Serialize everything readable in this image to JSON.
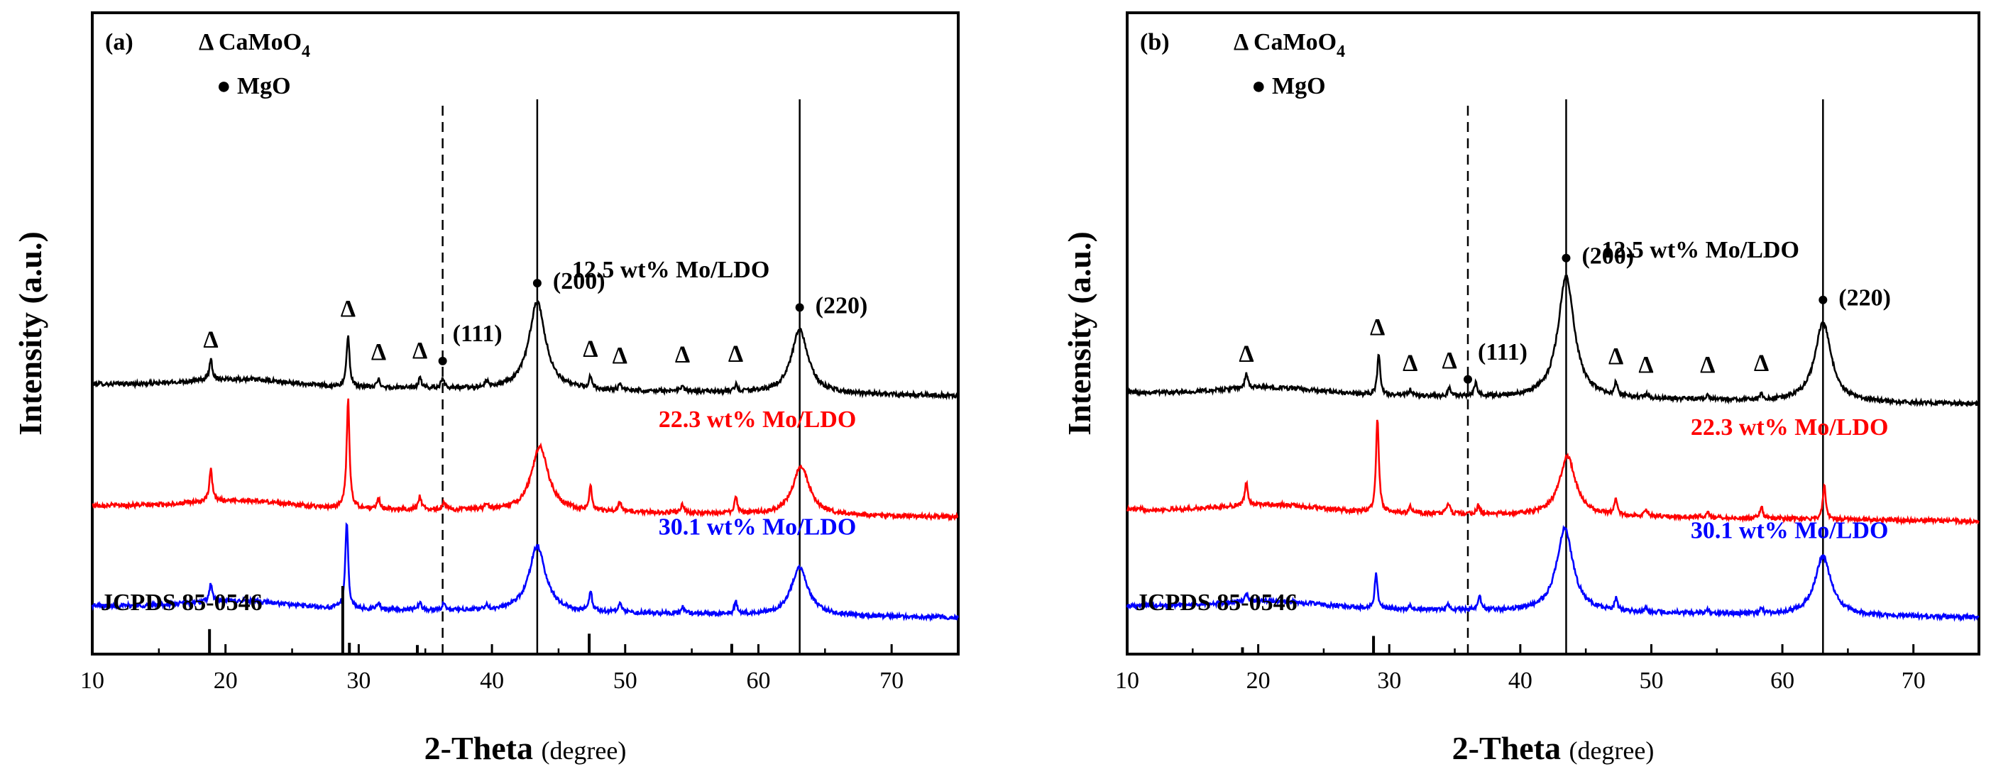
{
  "chart_data": [
    {
      "type": "line",
      "panel_label": "(a)",
      "title": "",
      "xlabel": "2-Theta",
      "xlabel_unit": "(degree)",
      "ylabel": "Intensity (a.u.)",
      "xlim": [
        10,
        75
      ],
      "xticks": [
        10,
        20,
        30,
        40,
        50,
        60,
        70
      ],
      "yticks_shown": false,
      "legend": {
        "entries": [
          {
            "marker": "Δ",
            "label": "CaMoO",
            "subscript": "4"
          },
          {
            "marker": "●",
            "label": "MgO",
            "subscript": ""
          }
        ],
        "placement": "top-left"
      },
      "series": [
        {
          "name": "12.5 wt% Mo/LDO",
          "label_text": "12.5 wt% Mo/LDO",
          "color": "#000000",
          "offset": 3.0,
          "peaks": [
            [
              18.9,
              0.25
            ],
            [
              29.2,
              0.62
            ],
            [
              31.5,
              0.1
            ],
            [
              34.6,
              0.12
            ],
            [
              36.3,
              0.12
            ],
            [
              39.6,
              0.07
            ],
            [
              43.4,
              1.05
            ],
            [
              47.4,
              0.14
            ],
            [
              49.6,
              0.06
            ],
            [
              54.3,
              0.07
            ],
            [
              58.3,
              0.08
            ],
            [
              63.1,
              0.76
            ]
          ]
        },
        {
          "name": "22.3 wt% Mo/LDO",
          "label_text": "22.3 wt% Mo/LDO",
          "color": "#ff0000",
          "offset": 1.55,
          "peaks": [
            [
              18.9,
              0.38
            ],
            [
              29.2,
              1.3
            ],
            [
              31.5,
              0.12
            ],
            [
              34.6,
              0.16
            ],
            [
              36.4,
              0.1
            ],
            [
              39.6,
              0.07
            ],
            [
              43.6,
              0.78
            ],
            [
              47.4,
              0.28
            ],
            [
              49.6,
              0.12
            ],
            [
              54.3,
              0.1
            ],
            [
              58.3,
              0.2
            ],
            [
              63.2,
              0.58
            ]
          ]
        },
        {
          "name": "30.1 wt% Mo/LDO",
          "label_text": "30.1 wt% Mo/LDO",
          "color": "#0000ff",
          "offset": 0.35,
          "peaks": [
            [
              18.9,
              0.22
            ],
            [
              29.1,
              1.04
            ],
            [
              31.5,
              0.08
            ],
            [
              34.6,
              0.1
            ],
            [
              36.4,
              0.08
            ],
            [
              39.6,
              0.06
            ],
            [
              43.4,
              0.78
            ],
            [
              47.4,
              0.24
            ],
            [
              49.6,
              0.1
            ],
            [
              54.3,
              0.08
            ],
            [
              58.3,
              0.14
            ],
            [
              63.1,
              0.57
            ]
          ]
        }
      ],
      "reference": {
        "label": "JCPDS 85-0546",
        "lines": [
          [
            18.8,
            0.22
          ],
          [
            28.8,
            0.6
          ],
          [
            29.3,
            0.1
          ],
          [
            34.4,
            0.08
          ],
          [
            47.3,
            0.18
          ],
          [
            58.0,
            0.09
          ]
        ]
      },
      "reflection_labels": [
        {
          "x": 36.3,
          "hkl": "(111)",
          "line": "dashed"
        },
        {
          "x": 43.4,
          "hkl": "(200)",
          "line": "solid"
        },
        {
          "x": 63.1,
          "hkl": "(220)",
          "line": "solid"
        }
      ],
      "triangle_markers": [
        18.9,
        29.2,
        31.5,
        34.6,
        47.4,
        49.6,
        54.3,
        58.3
      ]
    },
    {
      "type": "line",
      "panel_label": "(b)",
      "title": "",
      "xlabel": "2-Theta",
      "xlabel_unit": "(degree)",
      "ylabel": "Intensity (a.u.)",
      "xlim": [
        10,
        75
      ],
      "xticks": [
        10,
        20,
        30,
        40,
        50,
        60,
        70
      ],
      "yticks_shown": false,
      "legend": {
        "entries": [
          {
            "marker": "Δ",
            "label": "CaMoO",
            "subscript": "4"
          },
          {
            "marker": "●",
            "label": "MgO",
            "subscript": ""
          }
        ],
        "placement": "top-left"
      },
      "series": [
        {
          "name": "12.5 wt% Mo/LDO",
          "label_text": "12.5 wt% Mo/LDO",
          "color": "#000000",
          "offset": 2.9,
          "peaks": [
            [
              19.1,
              0.18
            ],
            [
              29.2,
              0.5
            ],
            [
              31.6,
              0.07
            ],
            [
              34.6,
              0.1
            ],
            [
              36.6,
              0.16
            ],
            [
              43.5,
              1.45
            ],
            [
              47.3,
              0.15
            ],
            [
              49.6,
              0.05
            ],
            [
              54.3,
              0.05
            ],
            [
              58.4,
              0.07
            ],
            [
              63.1,
              0.95
            ]
          ]
        },
        {
          "name": "22.3 wt% Mo/LDO",
          "label_text": "22.3 wt% Mo/LDO",
          "color": "#ff0000",
          "offset": 1.5,
          "peaks": [
            [
              19.1,
              0.28
            ],
            [
              29.1,
              1.12
            ],
            [
              31.6,
              0.08
            ],
            [
              34.5,
              0.13
            ],
            [
              36.8,
              0.1
            ],
            [
              43.6,
              0.7
            ],
            [
              47.3,
              0.2
            ],
            [
              49.6,
              0.07
            ],
            [
              54.3,
              0.08
            ],
            [
              58.4,
              0.14
            ],
            [
              63.2,
              0.42
            ]
          ]
        },
        {
          "name": "30.1 wt% Mo/LDO",
          "label_text": "30.1 wt% Mo/LDO",
          "color": "#0000ff",
          "offset": 0.35,
          "peaks": [
            [
              19.1,
              0.1
            ],
            [
              29.0,
              0.42
            ],
            [
              31.6,
              0.05
            ],
            [
              34.5,
              0.06
            ],
            [
              36.9,
              0.16
            ],
            [
              43.4,
              1.0
            ],
            [
              47.3,
              0.14
            ],
            [
              49.6,
              0.05
            ],
            [
              54.3,
              0.05
            ],
            [
              58.4,
              0.07
            ],
            [
              63.1,
              0.7
            ]
          ]
        }
      ],
      "reference": {
        "label": "JCPDS 85-0546",
        "lines": [
          [
            18.8,
            0.06
          ],
          [
            28.8,
            0.16
          ]
        ]
      },
      "reflection_labels": [
        {
          "x": 36.0,
          "hkl": "(111)",
          "line": "dashed"
        },
        {
          "x": 43.5,
          "hkl": "(200)",
          "line": "solid"
        },
        {
          "x": 63.1,
          "hkl": "(220)",
          "line": "solid"
        }
      ],
      "triangle_markers": [
        19.1,
        29.1,
        31.6,
        34.6,
        47.3,
        49.6,
        54.3,
        58.4
      ]
    }
  ]
}
